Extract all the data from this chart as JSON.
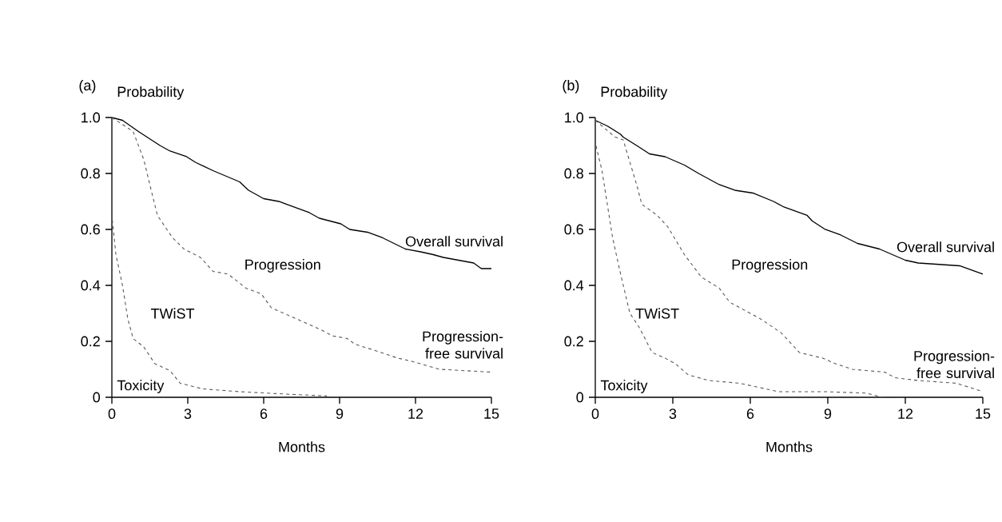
{
  "chart_data": [
    {
      "type": "line",
      "title": "(a)",
      "xlabel": "Months",
      "ylabel": "Probability",
      "xlim": [
        0,
        15
      ],
      "ylim": [
        0,
        1
      ],
      "xticks": [
        0,
        3,
        6,
        9,
        12,
        15
      ],
      "yticks": [
        0,
        0.2,
        0.4,
        0.6,
        0.8,
        {
          "value": 1,
          "label": "1.0"
        }
      ],
      "series": [
        {
          "name": "Overall survival",
          "color": "#000000",
          "line_style": "solid",
          "x": [
            0,
            0.42,
            1.05,
            1.9,
            2.3,
            2.95,
            3.3,
            4.0,
            5.05,
            5.4,
            6.0,
            6.6,
            7.2,
            7.8,
            8.2,
            9.05,
            9.4,
            10.1,
            10.7,
            11.6,
            12.2,
            12.7,
            13.1,
            14.3,
            14.6,
            15
          ],
          "values": [
            1.0,
            0.99,
            0.95,
            0.9,
            0.88,
            0.86,
            0.84,
            0.81,
            0.77,
            0.74,
            0.71,
            0.7,
            0.68,
            0.66,
            0.64,
            0.62,
            0.6,
            0.59,
            0.57,
            0.53,
            0.52,
            0.51,
            0.5,
            0.48,
            0.46,
            0.46
          ]
        },
        {
          "name": "Progression-free survival",
          "color": "#555555",
          "line_style": "dashed",
          "x": [
            0,
            0.84,
            1.26,
            1.5,
            1.8,
            2.4,
            2.85,
            3.5,
            4.0,
            4.6,
            5.3,
            5.9,
            6.3,
            7.05,
            7.8,
            8.3,
            8.7,
            9.3,
            9.6,
            10.3,
            11.3,
            11.8,
            12.95,
            15
          ],
          "values": [
            1.0,
            0.95,
            0.85,
            0.76,
            0.65,
            0.57,
            0.53,
            0.5,
            0.45,
            0.44,
            0.39,
            0.37,
            0.32,
            0.29,
            0.26,
            0.24,
            0.22,
            0.21,
            0.19,
            0.17,
            0.14,
            0.13,
            0.1,
            0.09
          ]
        },
        {
          "name": "Toxicity",
          "color": "#555555",
          "line_style": "dashed",
          "x": [
            0,
            0,
            0.16,
            0.42,
            0.63,
            0.84,
            1.26,
            1.7,
            2.3,
            2.7,
            3.6,
            5.05,
            7.2,
            8.5
          ],
          "values": [
            1.0,
            0.65,
            0.51,
            0.4,
            0.28,
            0.21,
            0.18,
            0.12,
            0.095,
            0.05,
            0.03,
            0.02,
            0.01,
            0.005
          ]
        }
      ],
      "annotations": [
        "Progression",
        "TWiST"
      ]
    },
    {
      "type": "line",
      "title": "(b)",
      "xlabel": "Months",
      "ylabel": "Probability",
      "xlim": [
        0,
        15
      ],
      "ylim": [
        0,
        1
      ],
      "xticks": [
        0,
        3,
        6,
        9,
        12,
        15
      ],
      "yticks": [
        0,
        0.2,
        0.4,
        0.6,
        0.8,
        {
          "value": 1,
          "label": "1.0"
        }
      ],
      "series": [
        {
          "name": "Overall survival",
          "color": "#000000",
          "line_style": "solid",
          "x": [
            0,
            0.46,
            0.98,
            1.08,
            1.6,
            2.1,
            2.7,
            3.45,
            4.0,
            4.8,
            5.4,
            6.1,
            6.9,
            7.3,
            8.2,
            8.4,
            8.9,
            9.5,
            10.15,
            11.0,
            11.5,
            12.0,
            12.5,
            14.1,
            15
          ],
          "values": [
            0.99,
            0.97,
            0.94,
            0.93,
            0.9,
            0.87,
            0.86,
            0.83,
            0.8,
            0.76,
            0.74,
            0.73,
            0.7,
            0.68,
            0.65,
            0.63,
            0.6,
            0.58,
            0.55,
            0.53,
            0.51,
            0.49,
            0.48,
            0.47,
            0.44
          ]
        },
        {
          "name": "Progression-free survival",
          "color": "#555555",
          "line_style": "dashed",
          "x": [
            0,
            0.77,
            1.08,
            1.6,
            1.8,
            2.4,
            2.8,
            3.45,
            4.1,
            4.8,
            5.2,
            5.8,
            6.4,
            7.2,
            7.9,
            8.8,
            9.3,
            9.95,
            11.2,
            11.6,
            12.5,
            14,
            15
          ],
          "values": [
            0.99,
            0.93,
            0.92,
            0.76,
            0.69,
            0.65,
            0.61,
            0.51,
            0.43,
            0.39,
            0.34,
            0.31,
            0.28,
            0.23,
            0.16,
            0.14,
            0.12,
            0.1,
            0.09,
            0.07,
            0.06,
            0.05,
            0.02
          ]
        },
        {
          "name": "Toxicity",
          "color": "#555555",
          "line_style": "dashed",
          "x": [
            0,
            0,
            0.26,
            0.67,
            0.98,
            1.34,
            1.7,
            2.2,
            2.7,
            3.1,
            3.6,
            4.4,
            5.6,
            7.1,
            8.9,
            10.5,
            11.1
          ],
          "values": [
            0.99,
            0.91,
            0.81,
            0.57,
            0.44,
            0.3,
            0.25,
            0.16,
            0.14,
            0.12,
            0.08,
            0.06,
            0.05,
            0.02,
            0.02,
            0.015,
            0.0
          ]
        }
      ],
      "annotations": [
        "Progression",
        "TWiST"
      ]
    }
  ]
}
